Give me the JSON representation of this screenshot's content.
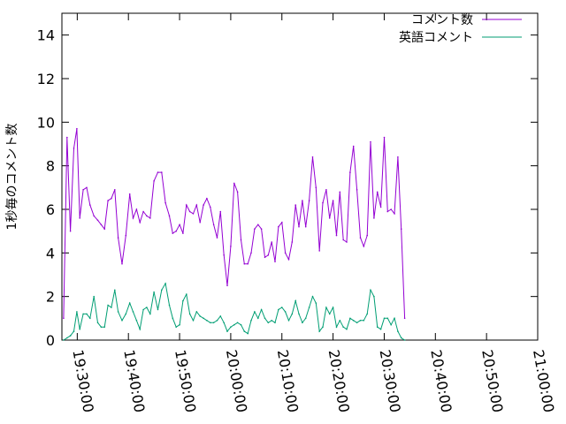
{
  "chart_data": {
    "type": "line",
    "ylabel": "1秒毎のコメント数",
    "ylim": [
      0,
      15
    ],
    "y_ticks": [
      "0",
      "2",
      "4",
      "6",
      "8",
      "10",
      "12",
      "14"
    ],
    "x_ticks": [
      "19:30:00",
      "19:40:00",
      "19:50:00",
      "20:00:00",
      "20:10:00",
      "20:20:00",
      "20:30:00",
      "20:40:00",
      "20:50:00",
      "21:00:00"
    ],
    "xlim": [
      "19:27:00",
      "21:00:00"
    ],
    "grid": false,
    "legend_position": "top-right",
    "series": [
      {
        "name": "コメント数",
        "color": "#9400d3",
        "points": [
          [
            "19:27:20",
            1.0
          ],
          [
            "19:28:00",
            9.3
          ],
          [
            "19:28:40",
            5.0
          ],
          [
            "19:29:20",
            8.8
          ],
          [
            "19:29:55",
            9.7
          ],
          [
            "19:30:30",
            5.6
          ],
          [
            "19:31:10",
            6.9
          ],
          [
            "19:31:50",
            7.0
          ],
          [
            "19:32:30",
            6.2
          ],
          [
            "19:33:15",
            5.7
          ],
          [
            "19:34:00",
            5.5
          ],
          [
            "19:34:40",
            5.3
          ],
          [
            "19:35:20",
            5.1
          ],
          [
            "19:36:00",
            6.4
          ],
          [
            "19:36:40",
            6.5
          ],
          [
            "19:37:20",
            6.9
          ],
          [
            "19:38:00",
            4.7
          ],
          [
            "19:38:45",
            3.5
          ],
          [
            "19:39:30",
            4.8
          ],
          [
            "19:40:15",
            6.7
          ],
          [
            "19:40:55",
            5.6
          ],
          [
            "19:41:35",
            6.0
          ],
          [
            "19:42:15",
            5.4
          ],
          [
            "19:42:55",
            5.9
          ],
          [
            "19:43:35",
            5.7
          ],
          [
            "19:44:15",
            5.6
          ],
          [
            "19:45:00",
            7.3
          ],
          [
            "19:45:45",
            7.7
          ],
          [
            "19:46:30",
            7.7
          ],
          [
            "19:47:15",
            6.3
          ],
          [
            "19:48:00",
            5.7
          ],
          [
            "19:48:40",
            4.9
          ],
          [
            "19:49:20",
            5.0
          ],
          [
            "19:50:00",
            5.3
          ],
          [
            "19:50:40",
            4.9
          ],
          [
            "19:51:20",
            6.2
          ],
          [
            "19:52:00",
            5.9
          ],
          [
            "19:52:40",
            5.8
          ],
          [
            "19:53:20",
            6.2
          ],
          [
            "19:54:00",
            5.4
          ],
          [
            "19:54:40",
            6.2
          ],
          [
            "19:55:20",
            6.5
          ],
          [
            "19:56:00",
            6.1
          ],
          [
            "19:56:40",
            5.3
          ],
          [
            "19:57:20",
            4.7
          ],
          [
            "19:58:00",
            5.9
          ],
          [
            "19:58:40",
            3.9
          ],
          [
            "19:59:20",
            2.5
          ],
          [
            "20:00:00",
            4.3
          ],
          [
            "20:00:40",
            7.2
          ],
          [
            "20:01:20",
            6.8
          ],
          [
            "20:02:00",
            4.6
          ],
          [
            "20:02:40",
            3.5
          ],
          [
            "20:03:20",
            3.5
          ],
          [
            "20:04:00",
            4.0
          ],
          [
            "20:04:40",
            5.1
          ],
          [
            "20:05:20",
            5.3
          ],
          [
            "20:06:00",
            5.1
          ],
          [
            "20:06:40",
            3.8
          ],
          [
            "20:07:20",
            3.9
          ],
          [
            "20:08:00",
            4.5
          ],
          [
            "20:08:40",
            3.6
          ],
          [
            "20:09:20",
            5.2
          ],
          [
            "20:10:00",
            5.4
          ],
          [
            "20:10:40",
            4.0
          ],
          [
            "20:11:20",
            3.7
          ],
          [
            "20:12:00",
            4.5
          ],
          [
            "20:12:40",
            6.2
          ],
          [
            "20:13:20",
            5.2
          ],
          [
            "20:14:00",
            6.4
          ],
          [
            "20:14:40",
            5.2
          ],
          [
            "20:15:20",
            6.4
          ],
          [
            "20:16:00",
            8.4
          ],
          [
            "20:16:40",
            7.0
          ],
          [
            "20:17:20",
            4.1
          ],
          [
            "20:18:00",
            6.3
          ],
          [
            "20:18:40",
            6.9
          ],
          [
            "20:19:20",
            5.6
          ],
          [
            "20:20:00",
            6.4
          ],
          [
            "20:20:40",
            4.8
          ],
          [
            "20:21:20",
            6.8
          ],
          [
            "20:22:00",
            4.6
          ],
          [
            "20:22:40",
            4.5
          ],
          [
            "20:23:20",
            7.7
          ],
          [
            "20:24:00",
            8.9
          ],
          [
            "20:24:40",
            6.9
          ],
          [
            "20:25:20",
            4.7
          ],
          [
            "20:26:00",
            4.3
          ],
          [
            "20:26:40",
            4.8
          ],
          [
            "20:27:20",
            9.1
          ],
          [
            "20:28:00",
            5.6
          ],
          [
            "20:28:40",
            6.8
          ],
          [
            "20:29:20",
            6.1
          ],
          [
            "20:30:00",
            9.3
          ],
          [
            "20:30:40",
            5.9
          ],
          [
            "20:31:20",
            6.0
          ],
          [
            "20:32:00",
            5.8
          ],
          [
            "20:32:40",
            8.4
          ],
          [
            "20:33:20",
            5.1
          ],
          [
            "20:34:00",
            1.0
          ]
        ]
      },
      {
        "name": "英語コメント",
        "color": "#009e73",
        "points": [
          [
            "19:27:20",
            0.0
          ],
          [
            "19:28:00",
            0.1
          ],
          [
            "19:28:40",
            0.2
          ],
          [
            "19:29:20",
            0.4
          ],
          [
            "19:29:55",
            1.3
          ],
          [
            "19:30:30",
            0.5
          ],
          [
            "19:31:10",
            1.2
          ],
          [
            "19:31:50",
            1.2
          ],
          [
            "19:32:30",
            1.0
          ],
          [
            "19:33:15",
            2.0
          ],
          [
            "19:34:00",
            0.8
          ],
          [
            "19:34:40",
            0.6
          ],
          [
            "19:35:20",
            0.6
          ],
          [
            "19:36:00",
            1.6
          ],
          [
            "19:36:40",
            1.5
          ],
          [
            "19:37:20",
            2.3
          ],
          [
            "19:38:00",
            1.3
          ],
          [
            "19:38:45",
            0.9
          ],
          [
            "19:39:30",
            1.2
          ],
          [
            "19:40:15",
            1.7
          ],
          [
            "19:40:55",
            1.3
          ],
          [
            "19:41:35",
            0.9
          ],
          [
            "19:42:15",
            0.5
          ],
          [
            "19:42:55",
            1.4
          ],
          [
            "19:43:35",
            1.5
          ],
          [
            "19:44:15",
            1.2
          ],
          [
            "19:45:00",
            2.2
          ],
          [
            "19:45:45",
            1.4
          ],
          [
            "19:46:30",
            2.3
          ],
          [
            "19:47:15",
            2.6
          ],
          [
            "19:48:00",
            1.6
          ],
          [
            "19:48:40",
            1.0
          ],
          [
            "19:49:20",
            0.6
          ],
          [
            "19:50:00",
            0.7
          ],
          [
            "19:50:40",
            1.8
          ],
          [
            "19:51:20",
            2.1
          ],
          [
            "19:52:00",
            1.2
          ],
          [
            "19:52:40",
            0.9
          ],
          [
            "19:53:20",
            1.3
          ],
          [
            "19:54:00",
            1.1
          ],
          [
            "19:54:40",
            1.0
          ],
          [
            "19:55:20",
            0.9
          ],
          [
            "19:56:00",
            0.8
          ],
          [
            "19:56:40",
            0.8
          ],
          [
            "19:57:20",
            0.9
          ],
          [
            "19:58:00",
            1.1
          ],
          [
            "19:58:40",
            0.8
          ],
          [
            "19:59:20",
            0.4
          ],
          [
            "20:00:00",
            0.6
          ],
          [
            "20:00:40",
            0.7
          ],
          [
            "20:01:20",
            0.8
          ],
          [
            "20:02:00",
            0.7
          ],
          [
            "20:02:40",
            0.4
          ],
          [
            "20:03:20",
            0.3
          ],
          [
            "20:04:00",
            0.9
          ],
          [
            "20:04:40",
            1.3
          ],
          [
            "20:05:20",
            1.0
          ],
          [
            "20:06:00",
            1.4
          ],
          [
            "20:06:40",
            1.0
          ],
          [
            "20:07:20",
            0.8
          ],
          [
            "20:08:00",
            0.9
          ],
          [
            "20:08:40",
            0.8
          ],
          [
            "20:09:20",
            1.4
          ],
          [
            "20:10:00",
            1.5
          ],
          [
            "20:10:40",
            1.3
          ],
          [
            "20:11:20",
            0.9
          ],
          [
            "20:12:00",
            1.2
          ],
          [
            "20:12:40",
            1.8
          ],
          [
            "20:13:20",
            1.2
          ],
          [
            "20:14:00",
            0.8
          ],
          [
            "20:14:40",
            1.0
          ],
          [
            "20:15:20",
            1.5
          ],
          [
            "20:16:00",
            2.0
          ],
          [
            "20:16:40",
            1.7
          ],
          [
            "20:17:20",
            0.4
          ],
          [
            "20:18:00",
            0.6
          ],
          [
            "20:18:40",
            1.5
          ],
          [
            "20:19:20",
            1.2
          ],
          [
            "20:20:00",
            1.5
          ],
          [
            "20:20:40",
            0.6
          ],
          [
            "20:21:20",
            0.9
          ],
          [
            "20:22:00",
            0.6
          ],
          [
            "20:22:40",
            0.5
          ],
          [
            "20:23:20",
            1.0
          ],
          [
            "20:24:00",
            0.9
          ],
          [
            "20:24:40",
            0.8
          ],
          [
            "20:25:20",
            0.9
          ],
          [
            "20:26:00",
            0.9
          ],
          [
            "20:26:40",
            1.2
          ],
          [
            "20:27:20",
            2.3
          ],
          [
            "20:28:00",
            2.0
          ],
          [
            "20:28:40",
            0.6
          ],
          [
            "20:29:20",
            0.5
          ],
          [
            "20:30:00",
            1.0
          ],
          [
            "20:30:40",
            1.0
          ],
          [
            "20:31:20",
            0.7
          ],
          [
            "20:32:00",
            1.0
          ],
          [
            "20:32:40",
            0.4
          ],
          [
            "20:33:20",
            0.1
          ],
          [
            "20:34:00",
            0.0
          ]
        ]
      }
    ]
  }
}
